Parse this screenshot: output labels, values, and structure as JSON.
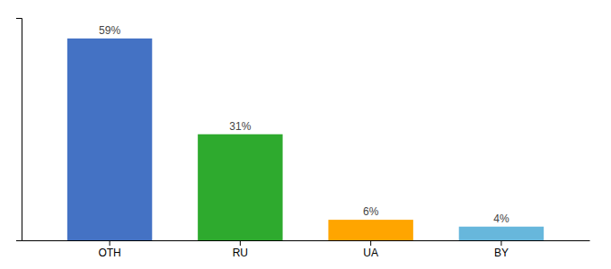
{
  "chart_data": {
    "type": "bar",
    "categories": [
      "OTH",
      "RU",
      "UA",
      "BY"
    ],
    "values": [
      59,
      31,
      6,
      4
    ],
    "value_labels": [
      "59%",
      "31%",
      "6%",
      "4%"
    ],
    "colors": [
      "#4472C4",
      "#2EAA2E",
      "#FFA500",
      "#67B7DC"
    ],
    "ylim": [
      0,
      65
    ],
    "data_labels": true,
    "tick_labels": "x",
    "grid": false
  }
}
